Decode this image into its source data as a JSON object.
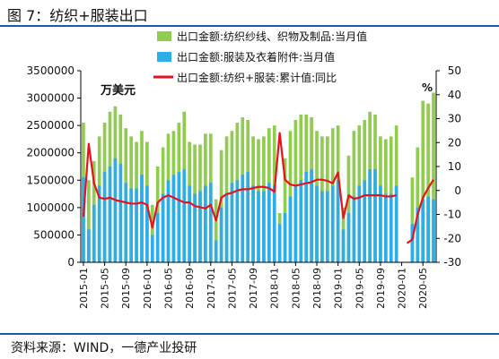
{
  "header": {
    "title": "图 7：纺织+服装出口"
  },
  "footer": {
    "source": "资料来源：WIND，一德产业投研"
  },
  "chart_data": {
    "type": "bar",
    "unit_left": "万美元",
    "unit_right": "%",
    "y_left": {
      "min": 0,
      "max": 3500000,
      "ticks": [
        0,
        500000,
        1000000,
        1500000,
        2000000,
        2500000,
        3000000,
        3500000
      ]
    },
    "y_right": {
      "min": -30,
      "max": 50,
      "ticks": [
        -30,
        -20,
        -10,
        0,
        10,
        20,
        30,
        40,
        50
      ]
    },
    "x_tick_labels": [
      "2015-01",
      "2015-05",
      "2015-09",
      "2016-01",
      "2016-05",
      "2016-09",
      "2017-01",
      "2017-05",
      "2017-09",
      "2018-01",
      "2018-05",
      "2018-09",
      "2019-01",
      "2019-05",
      "2019-09",
      "2020-01",
      "2020-05"
    ],
    "grid": false,
    "legend_position": "top-right",
    "colors": {
      "textile": "#8fcc4f",
      "garment": "#2eaee8",
      "yoy": "#e8121d"
    },
    "months": [
      "2015-01",
      "2015-02",
      "2015-03",
      "2015-04",
      "2015-05",
      "2015-06",
      "2015-07",
      "2015-08",
      "2015-09",
      "2015-10",
      "2015-11",
      "2015-12",
      "2016-01",
      "2016-02",
      "2016-03",
      "2016-04",
      "2016-05",
      "2016-06",
      "2016-07",
      "2016-08",
      "2016-09",
      "2016-10",
      "2016-11",
      "2016-12",
      "2017-01",
      "2017-02",
      "2017-03",
      "2017-04",
      "2017-05",
      "2017-06",
      "2017-07",
      "2017-08",
      "2017-09",
      "2017-10",
      "2017-11",
      "2017-12",
      "2018-01",
      "2018-02",
      "2018-03",
      "2018-04",
      "2018-05",
      "2018-06",
      "2018-07",
      "2018-08",
      "2018-09",
      "2018-10",
      "2018-11",
      "2018-12",
      "2019-01",
      "2019-02",
      "2019-03",
      "2019-04",
      "2019-05",
      "2019-06",
      "2019-07",
      "2019-08",
      "2019-09",
      "2019-10",
      "2019-11",
      "2019-12",
      "2020-01",
      "2020-02",
      "2020-03",
      "2020-04",
      "2020-05",
      "2020-06",
      "2020-07"
    ],
    "series": [
      {
        "name": "出口金额:纺织纱线、织物及制品:当月值",
        "values": [
          2550000,
          1500000,
          1850000,
          2300000,
          2550000,
          2750000,
          2850000,
          2700000,
          2450000,
          2300000,
          2200000,
          2400000,
          2200000,
          1050000,
          1750000,
          2100000,
          2350000,
          2400000,
          2550000,
          2750000,
          2200000,
          2150000,
          2150000,
          2350000,
          2350000,
          1150000,
          2050000,
          2300000,
          2400000,
          2550000,
          2650000,
          2600000,
          2300000,
          2250000,
          2300000,
          2450000,
          2500000,
          900000,
          1900000,
          2400000,
          2600000,
          2700000,
          2700000,
          2650000,
          2400000,
          2300000,
          2300000,
          2450000,
          2500000,
          1000000,
          1950000,
          2400000,
          2500000,
          2600000,
          2750000,
          2700000,
          2300000,
          2250000,
          2300000,
          2500000,
          0,
          0,
          1550000,
          2100000,
          2950000,
          2900000,
          3100000
        ]
      },
      {
        "name": "出口金额:服装及衣着附件:当月值",
        "values": [
          1550000,
          600000,
          1050000,
          1400000,
          1650000,
          1750000,
          1900000,
          1800000,
          1450000,
          1350000,
          1350000,
          1600000,
          1400000,
          500000,
          900000,
          1250000,
          1500000,
          1600000,
          1650000,
          1700000,
          1400000,
          1250000,
          1300000,
          1400000,
          1450000,
          400000,
          1000000,
          1250000,
          1450000,
          1500000,
          1600000,
          1650000,
          1400000,
          1300000,
          1300000,
          1450000,
          1400000,
          700000,
          900000,
          1200000,
          1400000,
          1500000,
          1650000,
          1700000,
          1400000,
          1300000,
          1300000,
          1400000,
          1500000,
          600000,
          900000,
          1200000,
          1400000,
          1500000,
          1700000,
          1700000,
          1400000,
          1250000,
          1250000,
          1400000,
          0,
          0,
          700000,
          1000000,
          1150000,
          1200000,
          1150000
        ]
      },
      {
        "name": "出口金额:纺织+服装:累计值:同比",
        "axis": "right",
        "values": [
          -11,
          19.5,
          3,
          -3,
          -3.5,
          -3,
          -4,
          -4.5,
          -5,
          -5.5,
          -5.5,
          -5,
          -6,
          -15.5,
          -5,
          -3,
          -2,
          -3,
          -4,
          -5,
          -5,
          -6.5,
          -7,
          -7.5,
          -6,
          -12.5,
          -3,
          -1.5,
          -1,
          0,
          0.5,
          0.5,
          1,
          1.5,
          1.5,
          1,
          -0.5,
          24,
          4.5,
          2.5,
          2,
          2.5,
          3,
          3.5,
          4.5,
          4.5,
          4,
          3,
          7.5,
          -11.5,
          -2,
          -3.5,
          -3,
          -2,
          -2,
          -2,
          -2,
          -2.5,
          -2.5,
          -2,
          null,
          -22,
          -20.5,
          -10,
          -3,
          1,
          4.5
        ]
      }
    ]
  }
}
